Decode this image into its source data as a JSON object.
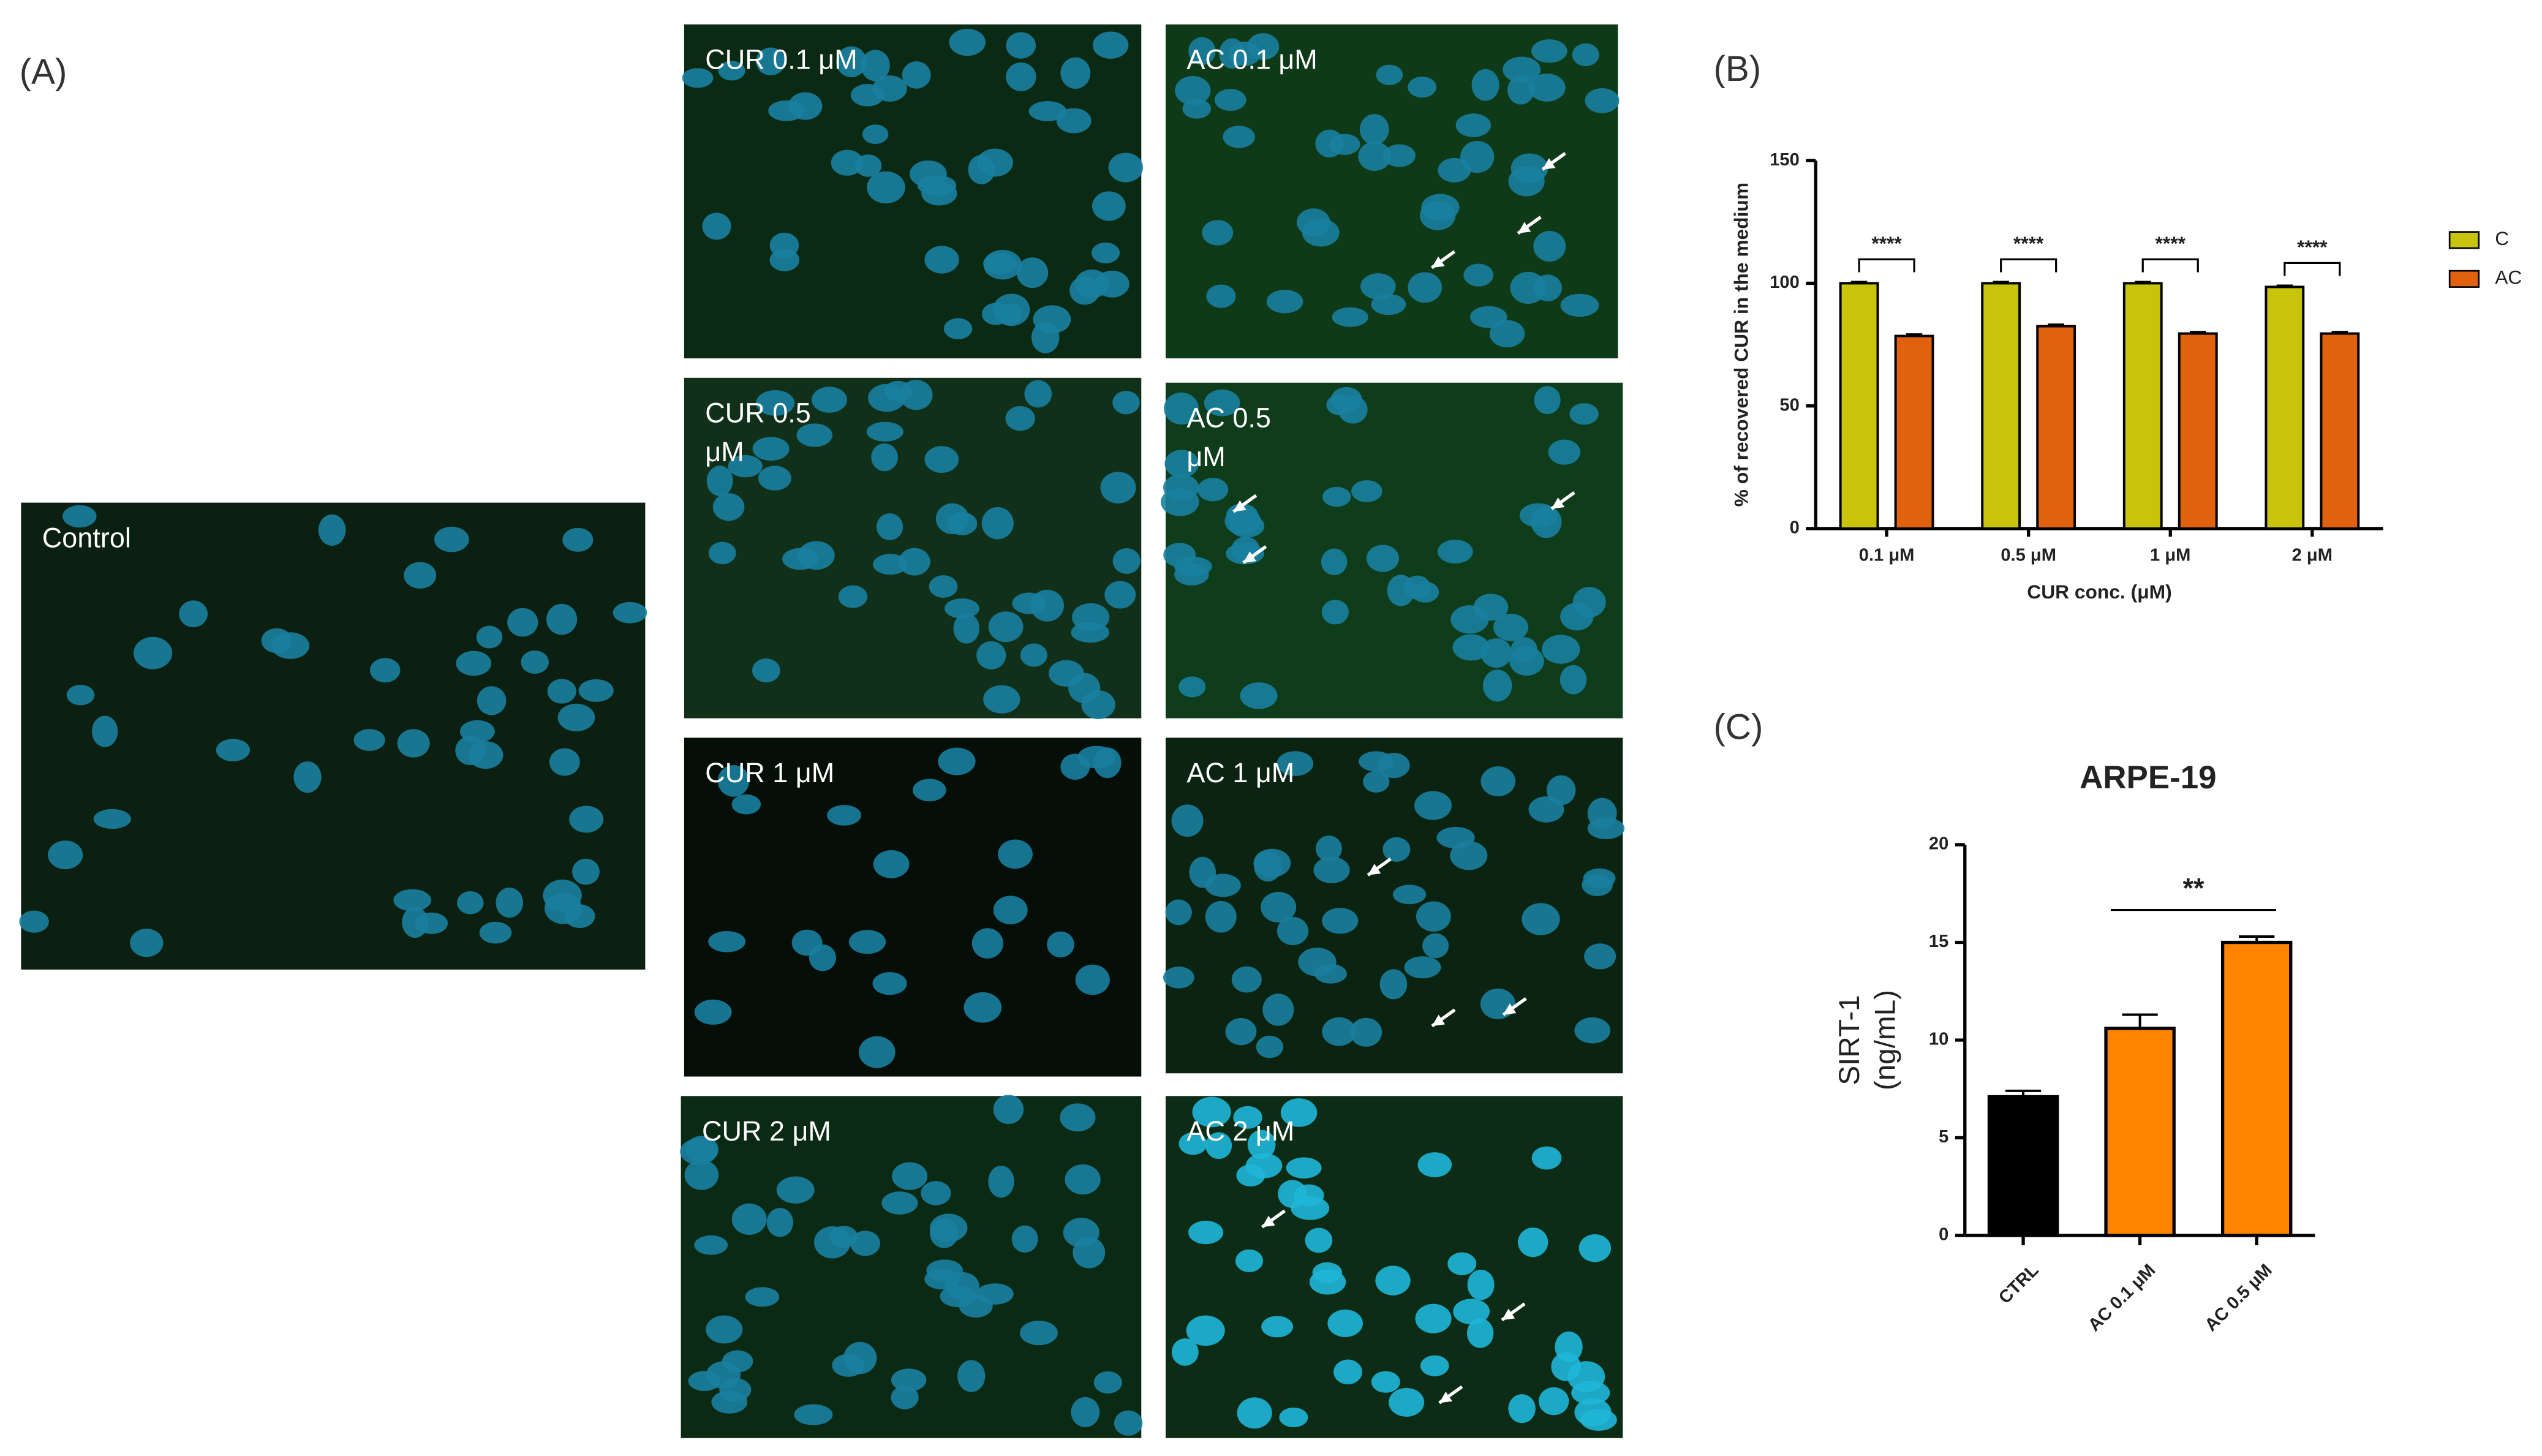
{
  "panel_a": {
    "label": "(A)",
    "images": [
      {
        "lines": [
          "Control"
        ]
      },
      {
        "lines": [
          "CUR 0.1 μM"
        ]
      },
      {
        "lines": [
          "AC 0.1 μM"
        ]
      },
      {
        "lines": [
          "CUR 0.5",
          "μM"
        ]
      },
      {
        "lines": [
          "AC 0.5",
          "μM"
        ]
      },
      {
        "lines": [
          "CUR 1 μM"
        ]
      },
      {
        "lines": [
          "AC 1 μM"
        ]
      },
      {
        "lines": [
          "CUR 2 μM"
        ]
      },
      {
        "lines": [
          "AC 2 μM"
        ]
      }
    ]
  },
  "chart_data": [
    {
      "type": "bar",
      "panel_label": "(B)",
      "ylabel": "% of recovered CUR in the medium",
      "xlabel": "CUR conc. (μM)",
      "categories": [
        "0.1 μM",
        "0.5 μM",
        "1 μM",
        "2 μM"
      ],
      "series": [
        {
          "name": "C",
          "color": "#c8c40c",
          "values": [
            100,
            100,
            100,
            98.5
          ],
          "errors": [
            0.5,
            0.5,
            0.5,
            0.5
          ]
        },
        {
          "name": "AC",
          "color": "#e0620f",
          "values": [
            78.5,
            82.5,
            79.5,
            79.5
          ],
          "errors": [
            0.6,
            0.6,
            0.6,
            0.6
          ]
        }
      ],
      "annotations": [
        "****",
        "****",
        "****",
        "****"
      ],
      "ylim": [
        0,
        150
      ],
      "yticks": [
        0,
        50,
        100,
        150
      ],
      "legend": "right"
    },
    {
      "type": "bar",
      "panel_label": "(C)",
      "title": "ARPE-19",
      "ylabel": [
        "SIRT-1",
        "(ng/mL)"
      ],
      "categories": [
        "CTRL",
        "AC 0.1 μM",
        "AC 0.5 μM"
      ],
      "values": [
        7.1,
        10.6,
        15.0
      ],
      "errors": [
        0.3,
        0.7,
        0.3
      ],
      "colors": [
        "#000000",
        "#ff8400",
        "#ff8400"
      ],
      "annotations": [
        "**"
      ],
      "ylim": [
        0,
        20
      ],
      "yticks": [
        0,
        5,
        10,
        15,
        20
      ]
    }
  ]
}
